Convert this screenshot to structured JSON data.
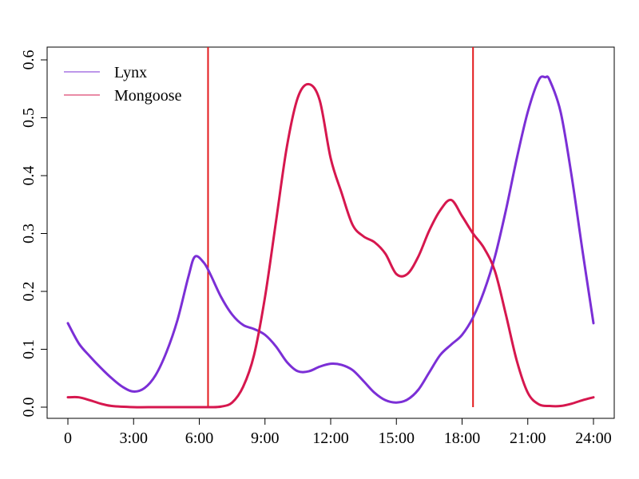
{
  "chart_data": {
    "type": "line",
    "title": "",
    "xlabel": "",
    "ylabel": "",
    "xlim": [
      0,
      24
    ],
    "ylim": [
      0,
      0.6
    ],
    "x_ticks": [
      {
        "value": 0,
        "label": "0"
      },
      {
        "value": 3,
        "label": "3:00"
      },
      {
        "value": 6,
        "label": "6:00"
      },
      {
        "value": 9,
        "label": "9:00"
      },
      {
        "value": 12,
        "label": "12:00"
      },
      {
        "value": 15,
        "label": "15:00"
      },
      {
        "value": 18,
        "label": "18:00"
      },
      {
        "value": 21,
        "label": "21:00"
      },
      {
        "value": 24,
        "label": "24:00"
      }
    ],
    "y_ticks": [
      {
        "value": 0,
        "label": "0.0"
      },
      {
        "value": 0.1,
        "label": "0.1"
      },
      {
        "value": 0.2,
        "label": "0.2"
      },
      {
        "value": 0.3,
        "label": "0.3"
      },
      {
        "value": 0.4,
        "label": "0.4"
      },
      {
        "value": 0.5,
        "label": "0.5"
      },
      {
        "value": 0.6,
        "label": "0.6"
      }
    ],
    "grid": false,
    "legend": "top-left",
    "series": [
      {
        "name": "Lynx",
        "color": "#7B2FD6",
        "points": [
          [
            0,
            0.145
          ],
          [
            0.5,
            0.11
          ],
          [
            1,
            0.088
          ],
          [
            1.5,
            0.068
          ],
          [
            2,
            0.05
          ],
          [
            2.5,
            0.035
          ],
          [
            3,
            0.027
          ],
          [
            3.5,
            0.033
          ],
          [
            4,
            0.055
          ],
          [
            4.5,
            0.095
          ],
          [
            5,
            0.15
          ],
          [
            5.5,
            0.225
          ],
          [
            5.8,
            0.26
          ],
          [
            6.2,
            0.25
          ],
          [
            6.5,
            0.23
          ],
          [
            7,
            0.19
          ],
          [
            7.5,
            0.16
          ],
          [
            8,
            0.142
          ],
          [
            8.5,
            0.135
          ],
          [
            9,
            0.125
          ],
          [
            9.5,
            0.105
          ],
          [
            10,
            0.078
          ],
          [
            10.5,
            0.062
          ],
          [
            11,
            0.062
          ],
          [
            11.5,
            0.07
          ],
          [
            12,
            0.075
          ],
          [
            12.5,
            0.073
          ],
          [
            13,
            0.064
          ],
          [
            13.5,
            0.045
          ],
          [
            14,
            0.025
          ],
          [
            14.5,
            0.012
          ],
          [
            15,
            0.008
          ],
          [
            15.5,
            0.013
          ],
          [
            16,
            0.03
          ],
          [
            16.5,
            0.06
          ],
          [
            17,
            0.09
          ],
          [
            17.5,
            0.108
          ],
          [
            18,
            0.125
          ],
          [
            18.5,
            0.155
          ],
          [
            19,
            0.2
          ],
          [
            19.5,
            0.26
          ],
          [
            20,
            0.34
          ],
          [
            20.5,
            0.43
          ],
          [
            21,
            0.51
          ],
          [
            21.5,
            0.565
          ],
          [
            21.8,
            0.57
          ],
          [
            22,
            0.565
          ],
          [
            22.5,
            0.51
          ],
          [
            23,
            0.4
          ],
          [
            23.5,
            0.27
          ],
          [
            24,
            0.145
          ]
        ]
      },
      {
        "name": "Mongoose",
        "color": "#D6174E",
        "points": [
          [
            0,
            0.017
          ],
          [
            0.5,
            0.017
          ],
          [
            1,
            0.012
          ],
          [
            1.5,
            0.006
          ],
          [
            2,
            0.002
          ],
          [
            3,
            0.0
          ],
          [
            4,
            0.0
          ],
          [
            5,
            0.0
          ],
          [
            6,
            0.0
          ],
          [
            6.5,
            0.0
          ],
          [
            7,
            0.001
          ],
          [
            7.5,
            0.008
          ],
          [
            8,
            0.035
          ],
          [
            8.5,
            0.09
          ],
          [
            9,
            0.19
          ],
          [
            9.5,
            0.32
          ],
          [
            10,
            0.45
          ],
          [
            10.5,
            0.535
          ],
          [
            11,
            0.558
          ],
          [
            11.5,
            0.53
          ],
          [
            12,
            0.43
          ],
          [
            12.5,
            0.37
          ],
          [
            13,
            0.315
          ],
          [
            13.5,
            0.295
          ],
          [
            14,
            0.285
          ],
          [
            14.5,
            0.265
          ],
          [
            15,
            0.23
          ],
          [
            15.5,
            0.23
          ],
          [
            16,
            0.26
          ],
          [
            16.5,
            0.305
          ],
          [
            17,
            0.34
          ],
          [
            17.5,
            0.358
          ],
          [
            18,
            0.33
          ],
          [
            18.5,
            0.3
          ],
          [
            19,
            0.275
          ],
          [
            19.5,
            0.235
          ],
          [
            20,
            0.16
          ],
          [
            20.5,
            0.08
          ],
          [
            21,
            0.025
          ],
          [
            21.5,
            0.005
          ],
          [
            22,
            0.002
          ],
          [
            22.5,
            0.002
          ],
          [
            23,
            0.006
          ],
          [
            23.5,
            0.012
          ],
          [
            24,
            0.017
          ]
        ]
      }
    ],
    "vlines": [
      {
        "x": 6.4,
        "color": "#E31A1C"
      },
      {
        "x": 18.5,
        "color": "#E31A1C"
      }
    ]
  }
}
